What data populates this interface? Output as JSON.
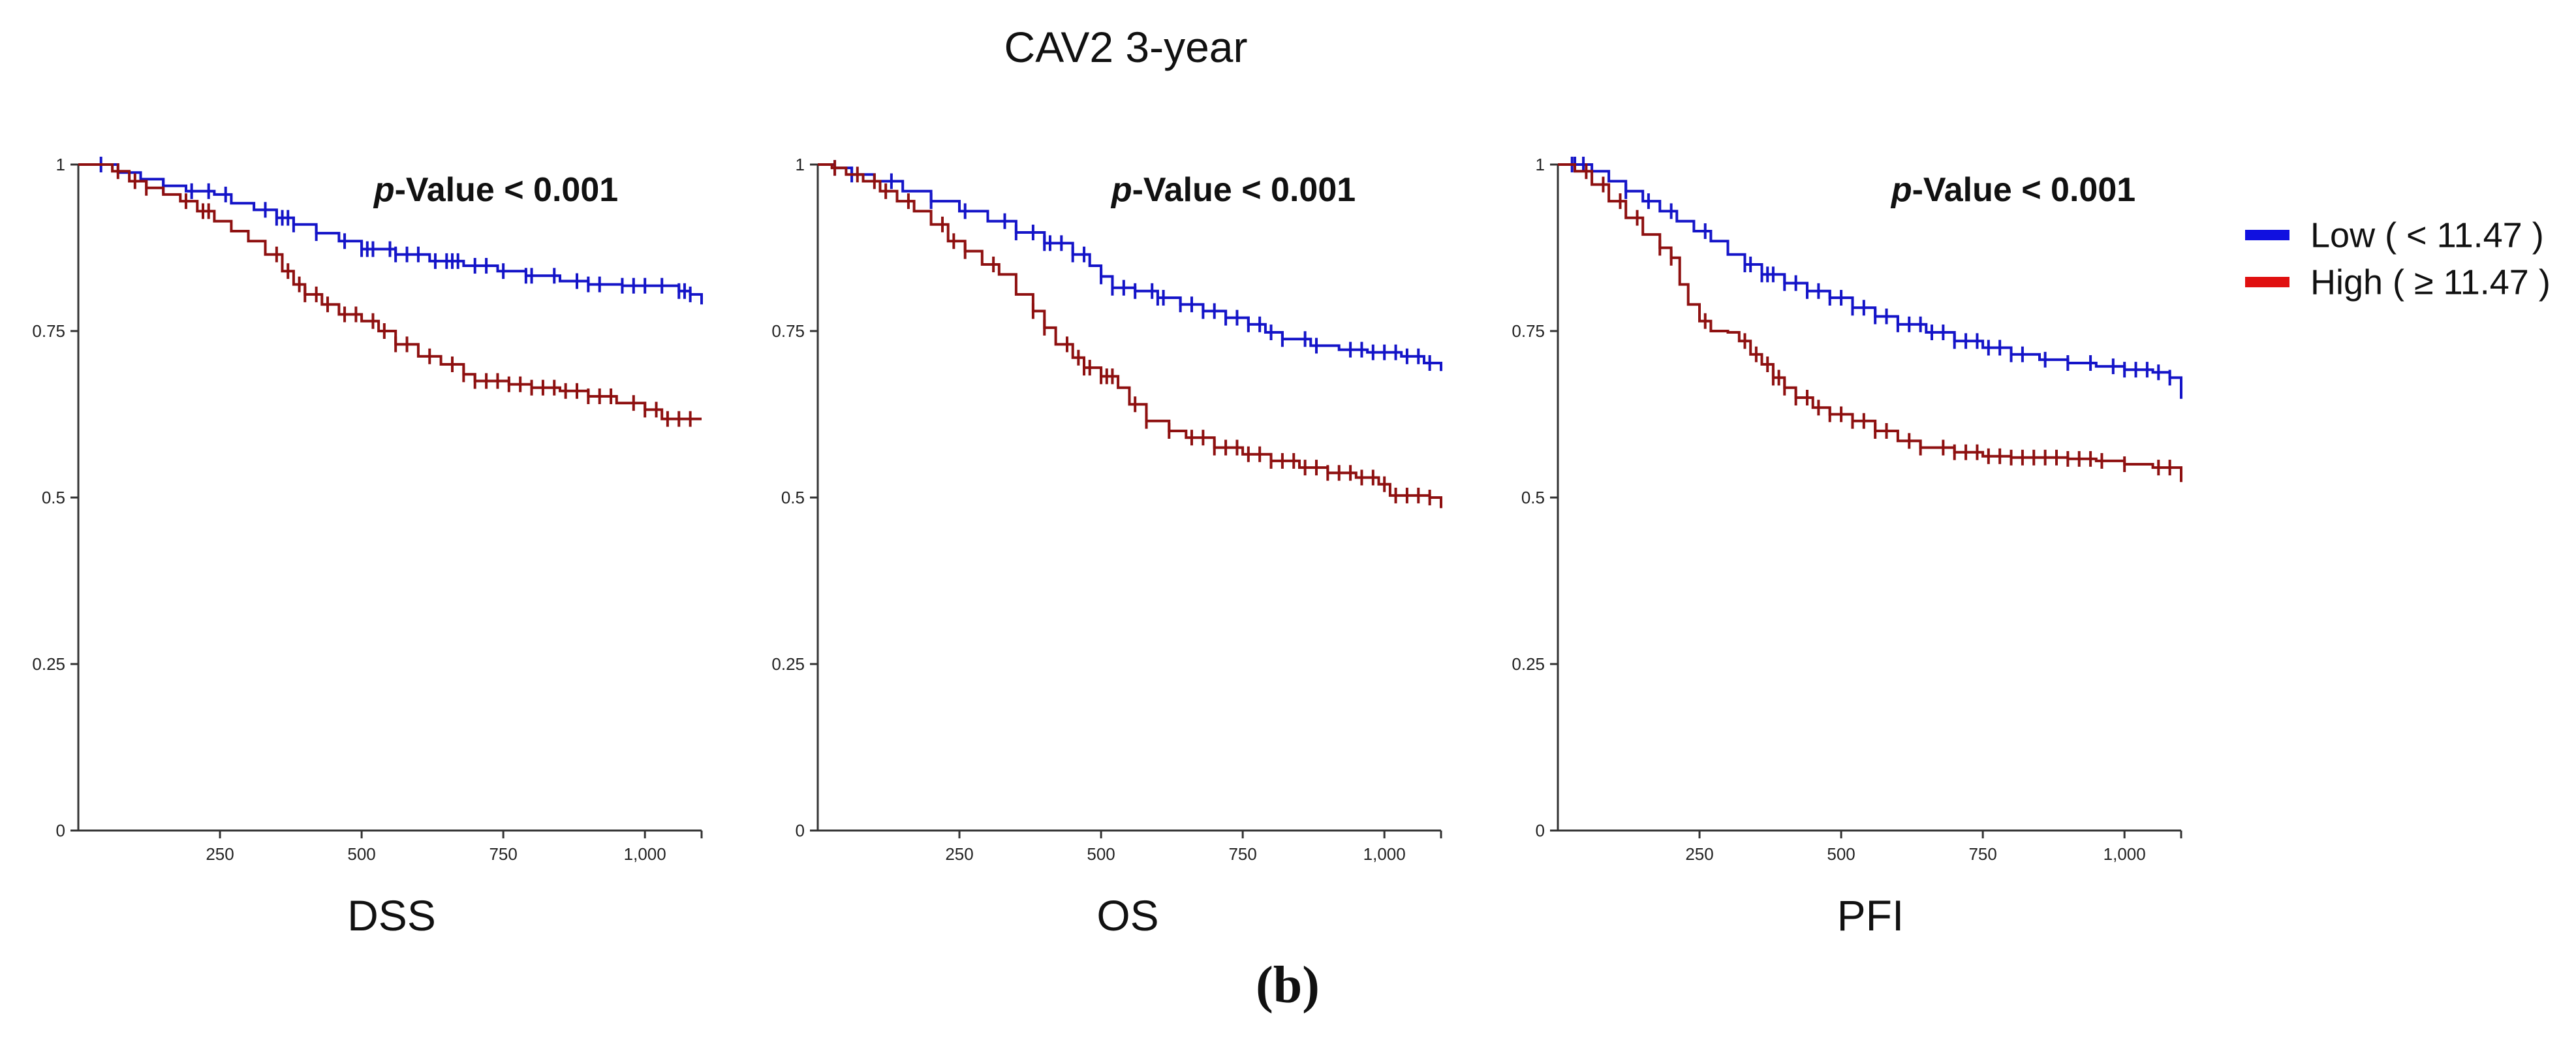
{
  "figure": {
    "title": "CAV2 3-year",
    "caption": "(b)"
  },
  "legend": {
    "entries": [
      {
        "label": "Low ( < 11.47 )",
        "color": "#1414c8",
        "legend_color": "#1010e0"
      },
      {
        "label": "High ( ≥ 11.47 )",
        "color": "#8e1010",
        "legend_color": "#e01010"
      }
    ],
    "placement": "right"
  },
  "chart_data": [
    {
      "type": "line",
      "subtype": "kaplan-meier",
      "title": "DSS",
      "pvalue": {
        "prefix": "p",
        "rest": "-Value < 0.001"
      },
      "xlim": [
        0,
        1100
      ],
      "ylim": [
        0,
        1
      ],
      "xticks": [
        250,
        500,
        750,
        1000
      ],
      "xtick_labels": [
        "250",
        "500",
        "750",
        "1,000"
      ],
      "yticks": [
        0,
        0.25,
        0.5,
        0.75,
        1
      ],
      "ytick_labels": [
        "0",
        "0.25",
        "0.5",
        "0.75",
        "1"
      ],
      "grid": false,
      "series": [
        {
          "name": "Low ( < 11.47 )",
          "points": [
            [
              0,
              1
            ],
            [
              55,
              1
            ],
            [
              70,
              0.988
            ],
            [
              110,
              0.978
            ],
            [
              150,
              0.968
            ],
            [
              190,
              0.96
            ],
            [
              240,
              0.955
            ],
            [
              270,
              0.942
            ],
            [
              310,
              0.932
            ],
            [
              350,
              0.92
            ],
            [
              380,
              0.91
            ],
            [
              420,
              0.897
            ],
            [
              460,
              0.885
            ],
            [
              500,
              0.873
            ],
            [
              560,
              0.865
            ],
            [
              620,
              0.855
            ],
            [
              680,
              0.848
            ],
            [
              740,
              0.84
            ],
            [
              790,
              0.833
            ],
            [
              850,
              0.825
            ],
            [
              900,
              0.82
            ],
            [
              960,
              0.818
            ],
            [
              1030,
              0.818
            ],
            [
              1060,
              0.81
            ],
            [
              1080,
              0.805
            ],
            [
              1100,
              0.79
            ]
          ],
          "censor_x": [
            40,
            150,
            200,
            230,
            260,
            330,
            350,
            360,
            370,
            380,
            420,
            470,
            500,
            510,
            520,
            550,
            560,
            580,
            600,
            630,
            650,
            660,
            670,
            700,
            720,
            750,
            790,
            800,
            840,
            880,
            900,
            920,
            960,
            980,
            1000,
            1030,
            1060,
            1070,
            1080
          ]
        },
        {
          "name": "High ( ≥ 11.47 )",
          "points": [
            [
              0,
              1
            ],
            [
              45,
              1
            ],
            [
              60,
              0.99
            ],
            [
              90,
              0.975
            ],
            [
              120,
              0.965
            ],
            [
              150,
              0.955
            ],
            [
              180,
              0.945
            ],
            [
              210,
              0.93
            ],
            [
              240,
              0.915
            ],
            [
              270,
              0.9
            ],
            [
              300,
              0.885
            ],
            [
              330,
              0.865
            ],
            [
              360,
              0.84
            ],
            [
              380,
              0.82
            ],
            [
              400,
              0.805
            ],
            [
              430,
              0.79
            ],
            [
              460,
              0.775
            ],
            [
              500,
              0.765
            ],
            [
              530,
              0.75
            ],
            [
              560,
              0.73
            ],
            [
              600,
              0.712
            ],
            [
              640,
              0.7
            ],
            [
              680,
              0.685
            ],
            [
              700,
              0.675
            ],
            [
              760,
              0.67
            ],
            [
              800,
              0.665
            ],
            [
              850,
              0.66
            ],
            [
              900,
              0.652
            ],
            [
              950,
              0.642
            ],
            [
              1000,
              0.632
            ],
            [
              1030,
              0.618
            ],
            [
              1100,
              0.618
            ]
          ],
          "censor_x": [
            70,
            100,
            120,
            190,
            220,
            230,
            350,
            370,
            390,
            400,
            420,
            440,
            470,
            490,
            520,
            540,
            560,
            580,
            620,
            660,
            680,
            700,
            720,
            740,
            760,
            780,
            800,
            820,
            840,
            860,
            880,
            900,
            920,
            940,
            980,
            1000,
            1020,
            1040,
            1060,
            1080
          ]
        }
      ]
    },
    {
      "type": "line",
      "subtype": "kaplan-meier",
      "title": "OS",
      "pvalue": {
        "prefix": "p",
        "rest": "-Value < 0.001"
      },
      "xlim": [
        0,
        1100
      ],
      "ylim": [
        0,
        1
      ],
      "xticks": [
        250,
        500,
        750,
        1000
      ],
      "xtick_labels": [
        "250",
        "500",
        "750",
        "1,000"
      ],
      "yticks": [
        0,
        0.25,
        0.5,
        0.75,
        1
      ],
      "ytick_labels": [
        "0",
        "0.25",
        "0.5",
        "0.75",
        "1"
      ],
      "grid": false,
      "series": [
        {
          "name": "Low ( < 11.47 )",
          "points": [
            [
              0,
              1
            ],
            [
              30,
              0.995
            ],
            [
              60,
              0.985
            ],
            [
              100,
              0.975
            ],
            [
              150,
              0.96
            ],
            [
              200,
              0.945
            ],
            [
              250,
              0.93
            ],
            [
              300,
              0.915
            ],
            [
              350,
              0.898
            ],
            [
              400,
              0.882
            ],
            [
              450,
              0.865
            ],
            [
              480,
              0.848
            ],
            [
              500,
              0.832
            ],
            [
              520,
              0.815
            ],
            [
              560,
              0.81
            ],
            [
              600,
              0.8
            ],
            [
              640,
              0.79
            ],
            [
              680,
              0.78
            ],
            [
              720,
              0.77
            ],
            [
              760,
              0.76
            ],
            [
              790,
              0.748
            ],
            [
              820,
              0.738
            ],
            [
              870,
              0.728
            ],
            [
              920,
              0.722
            ],
            [
              970,
              0.718
            ],
            [
              1030,
              0.712
            ],
            [
              1070,
              0.702
            ],
            [
              1100,
              0.69
            ]
          ],
          "censor_x": [
            30,
            60,
            130,
            200,
            260,
            330,
            350,
            380,
            400,
            410,
            430,
            450,
            470,
            500,
            520,
            540,
            560,
            590,
            600,
            610,
            640,
            660,
            680,
            700,
            720,
            740,
            760,
            780,
            800,
            820,
            860,
            880,
            940,
            960,
            980,
            1000,
            1020,
            1040,
            1060,
            1080
          ]
        },
        {
          "name": "High ( ≥ 11.47 )",
          "points": [
            [
              0,
              1
            ],
            [
              25,
              0.995
            ],
            [
              50,
              0.985
            ],
            [
              80,
              0.975
            ],
            [
              110,
              0.96
            ],
            [
              140,
              0.945
            ],
            [
              170,
              0.93
            ],
            [
              200,
              0.91
            ],
            [
              230,
              0.885
            ],
            [
              260,
              0.87
            ],
            [
              290,
              0.85
            ],
            [
              320,
              0.835
            ],
            [
              350,
              0.805
            ],
            [
              380,
              0.78
            ],
            [
              400,
              0.755
            ],
            [
              420,
              0.73
            ],
            [
              450,
              0.71
            ],
            [
              470,
              0.695
            ],
            [
              500,
              0.682
            ],
            [
              530,
              0.665
            ],
            [
              550,
              0.64
            ],
            [
              580,
              0.615
            ],
            [
              620,
              0.6
            ],
            [
              650,
              0.59
            ],
            [
              700,
              0.575
            ],
            [
              750,
              0.565
            ],
            [
              800,
              0.555
            ],
            [
              850,
              0.545
            ],
            [
              900,
              0.537
            ],
            [
              950,
              0.53
            ],
            [
              990,
              0.52
            ],
            [
              1010,
              0.503
            ],
            [
              1080,
              0.5
            ],
            [
              1100,
              0.484
            ]
          ],
          "censor_x": [
            30,
            70,
            100,
            120,
            160,
            220,
            240,
            260,
            310,
            380,
            400,
            440,
            460,
            470,
            480,
            500,
            510,
            520,
            560,
            580,
            620,
            660,
            680,
            700,
            720,
            740,
            760,
            780,
            800,
            820,
            840,
            860,
            880,
            900,
            920,
            940,
            960,
            980,
            1000,
            1020,
            1040,
            1060,
            1080
          ]
        }
      ]
    },
    {
      "type": "line",
      "subtype": "kaplan-meier",
      "title": "PFI",
      "pvalue": {
        "prefix": "p",
        "rest": "-Value < 0.001"
      },
      "xlim": [
        0,
        1100
      ],
      "ylim": [
        0,
        1
      ],
      "xticks": [
        250,
        500,
        750,
        1000
      ],
      "xtick_labels": [
        "250",
        "500",
        "750",
        "1,000"
      ],
      "yticks": [
        0,
        0.25,
        0.5,
        0.75,
        1
      ],
      "ytick_labels": [
        "0",
        "0.25",
        "0.5",
        "0.75",
        "1"
      ],
      "grid": false,
      "series": [
        {
          "name": "Low ( < 11.47 )",
          "points": [
            [
              0,
              1
            ],
            [
              40,
              1
            ],
            [
              60,
              0.99
            ],
            [
              90,
              0.975
            ],
            [
              120,
              0.96
            ],
            [
              150,
              0.945
            ],
            [
              180,
              0.93
            ],
            [
              210,
              0.915
            ],
            [
              240,
              0.9
            ],
            [
              270,
              0.885
            ],
            [
              300,
              0.865
            ],
            [
              330,
              0.85
            ],
            [
              360,
              0.835
            ],
            [
              400,
              0.822
            ],
            [
              440,
              0.81
            ],
            [
              480,
              0.8
            ],
            [
              520,
              0.785
            ],
            [
              560,
              0.772
            ],
            [
              600,
              0.76
            ],
            [
              650,
              0.748
            ],
            [
              700,
              0.735
            ],
            [
              750,
              0.725
            ],
            [
              800,
              0.715
            ],
            [
              850,
              0.707
            ],
            [
              900,
              0.702
            ],
            [
              950,
              0.697
            ],
            [
              1000,
              0.692
            ],
            [
              1050,
              0.688
            ],
            [
              1080,
              0.68
            ],
            [
              1100,
              0.66
            ]
          ],
          "censor_x": [
            25,
            30,
            45,
            120,
            160,
            200,
            260,
            330,
            340,
            360,
            370,
            380,
            400,
            420,
            440,
            460,
            480,
            500,
            520,
            540,
            560,
            580,
            600,
            620,
            640,
            660,
            680,
            700,
            720,
            740,
            760,
            780,
            800,
            820,
            860,
            900,
            940,
            980,
            1000,
            1020,
            1040,
            1060,
            1080,
            1100
          ]
        },
        {
          "name": "High ( ≥ 11.47 )",
          "points": [
            [
              0,
              1
            ],
            [
              30,
              0.99
            ],
            [
              60,
              0.97
            ],
            [
              90,
              0.945
            ],
            [
              120,
              0.92
            ],
            [
              150,
              0.895
            ],
            [
              180,
              0.875
            ],
            [
              200,
              0.86
            ],
            [
              215,
              0.82
            ],
            [
              230,
              0.79
            ],
            [
              250,
              0.765
            ],
            [
              270,
              0.75
            ],
            [
              300,
              0.748
            ],
            [
              320,
              0.735
            ],
            [
              340,
              0.715
            ],
            [
              360,
              0.7
            ],
            [
              380,
              0.68
            ],
            [
              400,
              0.665
            ],
            [
              420,
              0.65
            ],
            [
              450,
              0.635
            ],
            [
              480,
              0.625
            ],
            [
              520,
              0.615
            ],
            [
              560,
              0.6
            ],
            [
              600,
              0.585
            ],
            [
              640,
              0.575
            ],
            [
              700,
              0.568
            ],
            [
              750,
              0.562
            ],
            [
              800,
              0.56
            ],
            [
              900,
              0.558
            ],
            [
              950,
              0.555
            ],
            [
              1000,
              0.55
            ],
            [
              1050,
              0.545
            ],
            [
              1100,
              0.535
            ]
          ],
          "censor_x": [
            50,
            80,
            110,
            140,
            180,
            200,
            260,
            330,
            350,
            370,
            380,
            390,
            400,
            420,
            440,
            460,
            480,
            500,
            520,
            540,
            560,
            580,
            620,
            640,
            680,
            700,
            720,
            740,
            760,
            780,
            800,
            820,
            840,
            860,
            880,
            900,
            920,
            940,
            960,
            1000,
            1060,
            1080,
            1100
          ]
        }
      ]
    }
  ]
}
